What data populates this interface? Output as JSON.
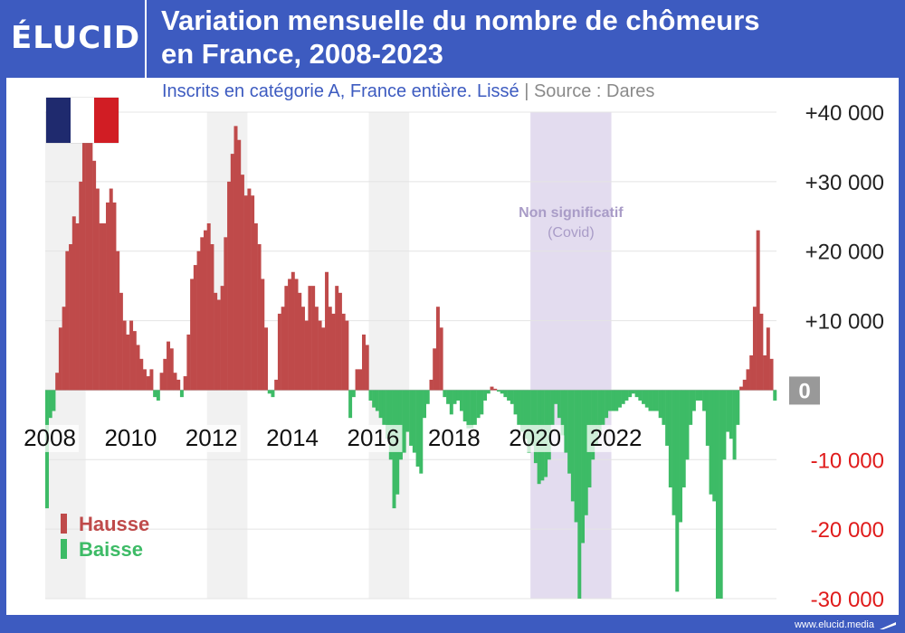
{
  "brand": {
    "logo_text": "ÉLUCID",
    "url": "www.elucid.media"
  },
  "header": {
    "title_line1": "Variation mensuelle du nombre de chômeurs",
    "title_line2": "en France, 2008-2023"
  },
  "subtitle": {
    "text": "Inscrits en catégorie A, France entière. Lissé",
    "separator": "|",
    "source": "Source : Dares"
  },
  "flag_colors": [
    "#1f2a6e",
    "#ffffff",
    "#d11d24"
  ],
  "colors": {
    "hausse": "#bf4a4a",
    "baisse": "#3dbb66",
    "negative_tick": "#e01b1b",
    "covid_band": "#e3dcef",
    "alt_band": "#f1f1f1",
    "covid_text": "#a99cc7",
    "zero_box": "#999999"
  },
  "chart_data": {
    "type": "bar",
    "ylim": [
      -30000,
      40000
    ],
    "y_ticks": [
      {
        "value": 40000,
        "label": "+40 000"
      },
      {
        "value": 30000,
        "label": "+30 000"
      },
      {
        "value": 20000,
        "label": "+20 000"
      },
      {
        "value": 10000,
        "label": "+10 000"
      },
      {
        "value": 0,
        "label": "0"
      },
      {
        "value": -10000,
        "label": "-10 000"
      },
      {
        "value": -20000,
        "label": "-20 000"
      },
      {
        "value": -30000,
        "label": "-30 000"
      }
    ],
    "x_ticks": [
      "2008",
      "2010",
      "2012",
      "2014",
      "2016",
      "2018",
      "2020",
      "2022"
    ],
    "legend": [
      "Hausse",
      "Baisse"
    ],
    "annotation": {
      "line1": "Non significatif",
      "line2": "(Covid)",
      "start_year": 2020,
      "end_year": 2022
    },
    "start_year": 2008,
    "values": [
      -17000,
      -4000,
      -3000,
      2500,
      9000,
      12000,
      20000,
      21000,
      25000,
      24000,
      30000,
      36000,
      38000,
      38000,
      33000,
      29000,
      24000,
      24000,
      27000,
      29000,
      27000,
      20000,
      14000,
      10000,
      8000,
      10000,
      8500,
      6500,
      4500,
      3000,
      2000,
      3000,
      -1000,
      -1500,
      2500,
      4500,
      7000,
      6000,
      2500,
      1500,
      -1000,
      2000,
      8000,
      16000,
      18000,
      20000,
      22000,
      23000,
      24000,
      21000,
      14000,
      13000,
      15000,
      22000,
      30000,
      34000,
      38000,
      36000,
      31000,
      28000,
      29000,
      28000,
      24000,
      21000,
      16000,
      9000,
      -500,
      -1000,
      1500,
      11000,
      12000,
      15000,
      16000,
      17000,
      16000,
      14000,
      12000,
      10000,
      15000,
      15000,
      12000,
      10000,
      9000,
      17000,
      12000,
      11000,
      15000,
      14000,
      11000,
      10000,
      -4000,
      -1000,
      3000,
      3000,
      8000,
      6500,
      -1500,
      -2500,
      -3000,
      -4000,
      -5000,
      -7000,
      -10000,
      -17000,
      -15000,
      -10000,
      -9000,
      -6000,
      -8000,
      -9000,
      -11000,
      -12000,
      -4000,
      -2000,
      1500,
      6000,
      12000,
      9000,
      -1000,
      -2000,
      -3500,
      -2000,
      -1500,
      -3000,
      -4500,
      -5500,
      -5500,
      -5000,
      -4000,
      -3500,
      -1500,
      -500,
      500,
      200,
      -200,
      -500,
      -1000,
      -1500,
      -2000,
      -3500,
      -5000,
      -6000,
      -7000,
      -9000,
      -8000,
      -10500,
      -13500,
      -13000,
      -12500,
      -10000,
      -5000,
      -2000,
      -4000,
      -6500,
      -9000,
      -12000,
      -16000,
      -19000,
      -30000,
      -22000,
      -18000,
      -14000,
      -10000,
      -8000,
      -6000,
      -5000,
      -4000,
      -3000,
      -3000,
      -3000,
      -2500,
      -2000,
      -1500,
      -1000,
      -500,
      -1000,
      -1500,
      -2000,
      -2500,
      -3000,
      -3000,
      -3000,
      -4000,
      -5000,
      -8000,
      -14000,
      -18000,
      -29000,
      -19000,
      -14000,
      -10000,
      -5000,
      -3000,
      -1500,
      -1500,
      -3000,
      -8000,
      -15000,
      -16000,
      -30000,
      -30000,
      -10000,
      -6000,
      -7000,
      -10000,
      -5000,
      500,
      1500,
      3000,
      5000,
      12000,
      23000,
      11000,
      5000,
      9000,
      4500,
      -1500
    ]
  }
}
